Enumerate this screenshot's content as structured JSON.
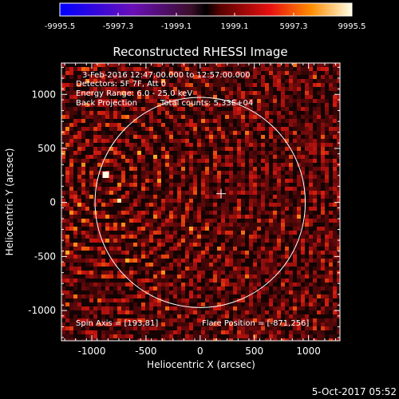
{
  "colorbar": {
    "tick_labels": [
      "-9995.5",
      "-5997.3",
      "-1999.1",
      "1999.1",
      "5997.3",
      "9995.5"
    ]
  },
  "plot": {
    "title": "Reconstructed RHESSI Image",
    "xlabel": "Heliocentric X (arcsec)",
    "ylabel": "Heliocentric Y (arcsec)",
    "x_ticks": [
      "-1000",
      "-500",
      "0",
      "500",
      "1000"
    ],
    "y_ticks": [
      "1000",
      "500",
      "0",
      "-500",
      "-1000"
    ],
    "xlim": [
      -1280,
      1290
    ],
    "ylim": [
      -1280,
      1290
    ],
    "info": {
      "line1": "3-Feb-2016 12:47:00.000 to 12:57:00.000",
      "line2": "Detectors: 5F 7F, Att 0",
      "line3": "Energy Range: 6.0 - 25.0 keV",
      "line4a": "Back Projection",
      "line4b": "Total counts: 5.33E+04"
    },
    "spin_axis": "Spin Axis = [193,81]",
    "flare_position": "Flare Position = [-871,256]",
    "solar_disk": {
      "center": [
        0,
        0
      ],
      "radius": 970
    },
    "spin_axis_xy": [
      193,
      81
    ],
    "flare_xy": [
      -871,
      256
    ]
  },
  "footer": {
    "date": "5-Oct-2017 05:52"
  },
  "colors": {
    "background": "#000000",
    "foreground": "#ffffff"
  }
}
